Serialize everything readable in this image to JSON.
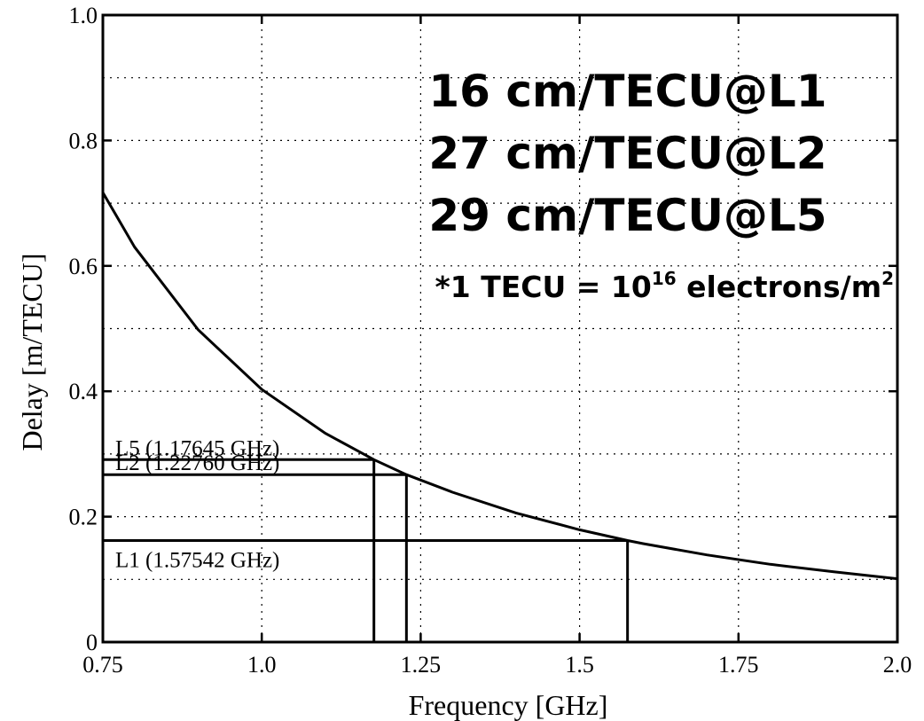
{
  "chart_data": {
    "type": "line",
    "title": "",
    "xlabel": "Frequency [GHz]",
    "ylabel": "Delay [m/TECU]",
    "xlim": [
      0.75,
      2.0
    ],
    "ylim": [
      0,
      1.0
    ],
    "grid": true,
    "x_ticks": [
      0.75,
      1.0,
      1.25,
      1.5,
      1.75,
      2.0
    ],
    "x_tick_labels": [
      "0.75",
      "1.0",
      "1.25",
      "1.5",
      "1.75",
      "2.0"
    ],
    "y_ticks": [
      0,
      0.2,
      0.4,
      0.6,
      0.8,
      1.0
    ],
    "y_tick_labels": [
      "0",
      "0.2",
      "0.4",
      "0.6",
      "0.8",
      "1.0"
    ],
    "y_minor_gridlines": [
      0.1,
      0.3,
      0.5,
      0.7,
      0.9
    ],
    "series": [
      {
        "x": [
          0.75,
          0.8,
          0.9,
          1.0,
          1.1,
          1.17645,
          1.2276,
          1.3,
          1.4,
          1.5,
          1.57542,
          1.6,
          1.7,
          1.8,
          1.9,
          2.0
        ],
        "y": [
          0.717,
          0.63,
          0.498,
          0.403,
          0.333,
          0.291,
          0.267,
          0.239,
          0.206,
          0.179,
          0.162,
          0.157,
          0.139,
          0.124,
          0.112,
          0.101
        ]
      }
    ],
    "bands": [
      {
        "label": "L5 (1.17645 GHz)",
        "frequency": 1.17645,
        "delay": 0.291
      },
      {
        "label": "L2 (1.22760 GHz)",
        "frequency": 1.2276,
        "delay": 0.267
      },
      {
        "label": "L1 (1.57542 GHz)",
        "frequency": 1.57542,
        "delay": 0.162
      }
    ],
    "annotations": {
      "line1": "16 cm/TECU@L1",
      "line2": "27 cm/TECU@L2",
      "line3": "29 cm/TECU@L5",
      "footnote_prefix": "*1 TECU = 10",
      "footnote_exp": "16",
      "footnote_mid": " electrons/m",
      "footnote_exp2": "2"
    }
  }
}
